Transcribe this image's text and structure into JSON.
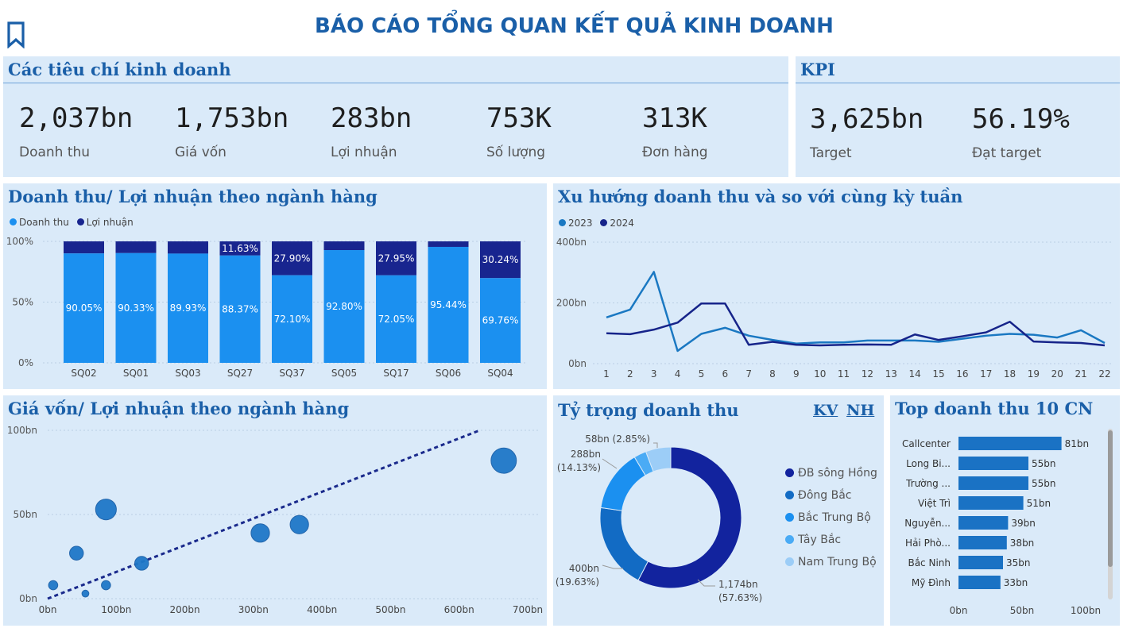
{
  "header": {
    "title": "BÁO CÁO TỔNG QUAN KẾT QUẢ KINH DOANH"
  },
  "colors": {
    "revenue": "#1b90f0",
    "profit": "#18258f",
    "y2023": "#1a78c2",
    "y2024": "#16248a",
    "panel": "#daeaf9",
    "title": "#1a5fa8"
  },
  "kpi_business": {
    "title": "Các tiêu chí kinh doanh",
    "items": [
      {
        "value": "2,037bn",
        "label": "Doanh thu"
      },
      {
        "value": "1,753bn",
        "label": "Giá vốn"
      },
      {
        "value": "283bn",
        "label": "Lợi nhuận"
      },
      {
        "value": "753K",
        "label": "Số lượng"
      },
      {
        "value": "313K",
        "label": "Đơn hàng"
      }
    ]
  },
  "kpi_target": {
    "title": "KPI",
    "items": [
      {
        "value": "3,625bn",
        "label": "Target"
      },
      {
        "value": "56.19%",
        "label": "Đạt target"
      }
    ]
  },
  "bar_panel": {
    "title": "Doanh thu/ Lợi nhuận theo ngành hàng",
    "legend": [
      "Doanh thu",
      "Lợi nhuận"
    ]
  },
  "line_panel": {
    "title": "Xu hướng doanh thu và so với cùng kỳ tuần",
    "legend": [
      "2023",
      "2024"
    ]
  },
  "scatter_panel": {
    "title": "Giá vốn/ Lợi nhuận theo ngành hàng"
  },
  "donut_panel": {
    "title": "Tỷ trọng doanh thu",
    "link_kv": "KV",
    "link_nh": "NH"
  },
  "top_panel": {
    "title": "Top doanh thu 10 CN"
  },
  "chart_data": [
    {
      "type": "bar",
      "stacked": "100%",
      "categories": [
        "SQ02",
        "SQ01",
        "SQ03",
        "SQ27",
        "SQ37",
        "SQ05",
        "SQ17",
        "SQ06",
        "SQ04"
      ],
      "series": [
        {
          "name": "Doanh thu",
          "values": [
            90.05,
            90.33,
            89.93,
            88.37,
            72.1,
            92.8,
            72.05,
            95.44,
            69.76
          ],
          "labels": [
            "90.05%",
            "90.33%",
            "89.93%",
            "88.37%",
            "72.10%",
            "92.80%",
            "72.05%",
            "95.44%",
            "69.76%"
          ]
        },
        {
          "name": "Lợi nhuận",
          "values": [
            9.95,
            9.67,
            10.07,
            11.63,
            27.9,
            7.2,
            27.95,
            4.56,
            30.24
          ],
          "labels": [
            "",
            "",
            "",
            "11.63%",
            "27.90%",
            "",
            "27.95%",
            "",
            "30.24%"
          ]
        }
      ],
      "yticks": [
        "0%",
        "50%",
        "100%"
      ],
      "ylim": [
        0,
        100
      ],
      "legend_position": "top-left"
    },
    {
      "type": "line",
      "x": [
        1,
        2,
        3,
        4,
        5,
        6,
        7,
        8,
        9,
        10,
        11,
        12,
        13,
        14,
        15,
        16,
        17,
        18,
        19,
        20,
        21,
        22
      ],
      "xticks": [
        "1",
        "2",
        "3",
        "4",
        "5",
        "6",
        "7",
        "8",
        "9",
        "10",
        "11",
        "12",
        "13",
        "14",
        "15",
        "16",
        "17",
        "18",
        "19",
        "20",
        "21",
        "22"
      ],
      "series": [
        {
          "name": "2023",
          "values": [
            152,
            178,
            302,
            42,
            98,
            118,
            92,
            78,
            66,
            70,
            70,
            76,
            76,
            76,
            72,
            82,
            92,
            98,
            95,
            86,
            110,
            68
          ]
        },
        {
          "name": "2024",
          "values": [
            100,
            97,
            112,
            135,
            198,
            198,
            62,
            72,
            62,
            60,
            62,
            63,
            62,
            96,
            78,
            90,
            103,
            138,
            73,
            70,
            68,
            60
          ]
        }
      ],
      "yticks": [
        "0bn",
        "200bn",
        "400bn"
      ],
      "ylim": [
        0,
        400
      ],
      "legend_position": "top-left"
    },
    {
      "type": "scatter",
      "points": [
        {
          "x": 8,
          "y": 8,
          "size": 4
        },
        {
          "x": 42,
          "y": 27,
          "size": 6
        },
        {
          "x": 55,
          "y": 3,
          "size": 3
        },
        {
          "x": 85,
          "y": 8,
          "size": 4
        },
        {
          "x": 85,
          "y": 53,
          "size": 9
        },
        {
          "x": 137,
          "y": 21,
          "size": 6
        },
        {
          "x": 310,
          "y": 39,
          "size": 8
        },
        {
          "x": 367,
          "y": 44,
          "size": 8
        },
        {
          "x": 665,
          "y": 82,
          "size": 11
        }
      ],
      "trendline": {
        "x": [
          0,
          630
        ],
        "y": [
          0,
          100
        ]
      },
      "xticks": [
        "0bn",
        "100bn",
        "200bn",
        "300bn",
        "400bn",
        "500bn",
        "600bn",
        "700bn"
      ],
      "yticks": [
        "0bn",
        "50bn",
        "100bn"
      ],
      "xlim": [
        0,
        700
      ],
      "ylim": [
        0,
        100
      ]
    },
    {
      "type": "pie",
      "donut": true,
      "slices": [
        {
          "name": "ĐB sông Hồng",
          "value": 1174,
          "label": "1,174bn",
          "pct": "(57.63%)",
          "color": "#12239e"
        },
        {
          "name": "Đông Bắc",
          "value": 400,
          "label": "400bn",
          "pct": "(19.63%)",
          "color": "#126bc4"
        },
        {
          "name": "Bắc Trung Bộ",
          "value": 288,
          "label": "288bn",
          "pct": "(14.13%)",
          "color": "#1b90f0"
        },
        {
          "name": "Tây Bắc",
          "value": 58,
          "label": "58bn (2.85%)",
          "pct": "",
          "color": "#4aabf5"
        },
        {
          "name": "Nam Trung Bộ",
          "value": 117,
          "label": "",
          "pct": "",
          "color": "#9ccdf7"
        }
      ]
    },
    {
      "type": "bar",
      "orientation": "horizontal",
      "categories": [
        "Callcenter",
        "Long Bi...",
        "Trường ...",
        "Việt Trì",
        "Nguyễn...",
        "Hải Phò...",
        "Bắc Ninh",
        "Mỹ Đình"
      ],
      "values": [
        81,
        55,
        55,
        51,
        39,
        38,
        35,
        33
      ],
      "labels": [
        "81bn",
        "55bn",
        "55bn",
        "51bn",
        "39bn",
        "38bn",
        "35bn",
        "33bn"
      ],
      "xticks": [
        "0bn",
        "50bn",
        "100bn"
      ],
      "xlim": [
        0,
        100
      ]
    }
  ]
}
